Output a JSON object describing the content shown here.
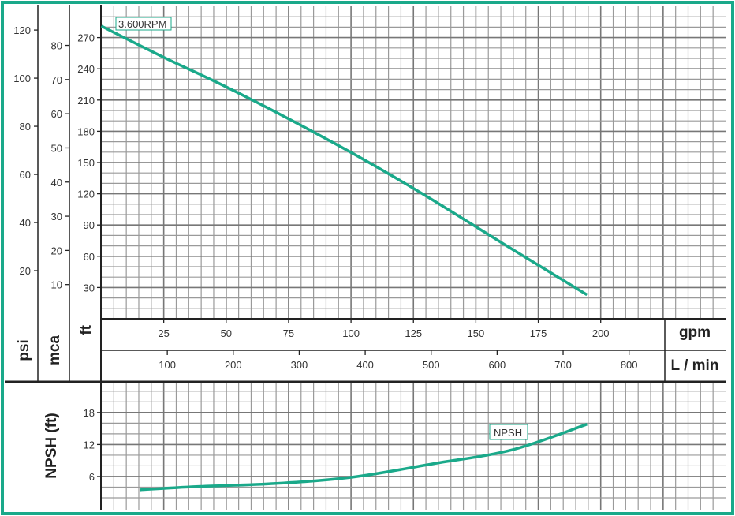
{
  "chart_data": [
    {
      "type": "line",
      "title": "",
      "x_unit_primary": "gpm",
      "x_unit_secondary": "L / min",
      "x_ticks_gpm": [
        25,
        50,
        75,
        100,
        125,
        150,
        175,
        200
      ],
      "x_ticks_lmin": [
        100,
        200,
        300,
        400,
        500,
        600,
        700,
        800
      ],
      "xlim_gpm": [
        0,
        250
      ],
      "y_axes": [
        {
          "label": "psi",
          "ticks": [
            20,
            40,
            60,
            80,
            100,
            120
          ]
        },
        {
          "label": "mca",
          "ticks": [
            10,
            20,
            30,
            40,
            50,
            60,
            70,
            80
          ]
        },
        {
          "label": "ft",
          "ticks": [
            30,
            60,
            90,
            120,
            150,
            180,
            210,
            240,
            270
          ]
        }
      ],
      "ylim_ft": [
        0,
        300
      ],
      "grid": true,
      "series": [
        {
          "name": "3.600RPM",
          "x": [
            0,
            25,
            48,
            75,
            105,
            130,
            161,
            194.5
          ],
          "y": [
            281,
            251,
            225,
            192,
            153,
            118,
            72,
            23
          ]
        }
      ]
    },
    {
      "type": "line",
      "ylabel": "NPSH (ft)",
      "y_ticks": [
        6,
        12,
        18
      ],
      "ylim": [
        0,
        23.6
      ],
      "xlim_gpm": [
        0,
        250
      ],
      "grid": true,
      "series": [
        {
          "name": "NPSH",
          "x": [
            15.6,
            38,
            70,
            101,
            133,
            164.5,
            194.5
          ],
          "y": [
            3.5,
            4.1,
            4.7,
            5.9,
            8.4,
            11,
            15.8
          ]
        }
      ]
    }
  ],
  "colors": {
    "accent": "#1aa98a",
    "grid": "#8a8a8a",
    "axis": "#222222"
  }
}
